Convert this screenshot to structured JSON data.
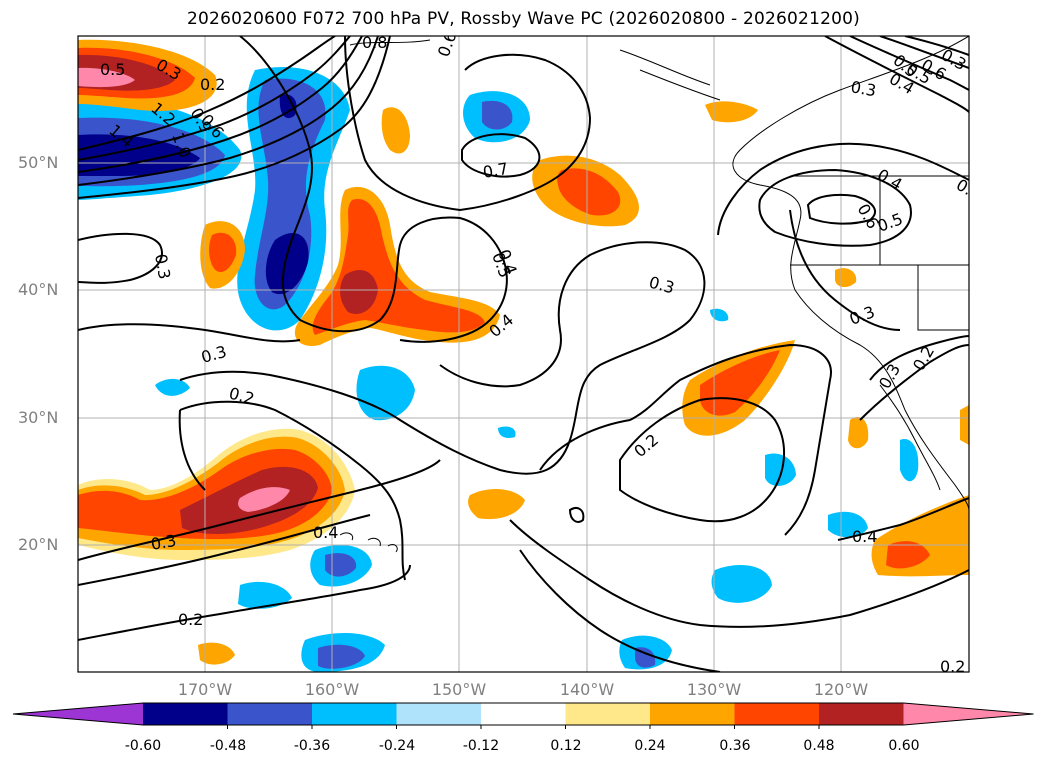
{
  "title": "2026020600 F072 700 hPa PV, Rossby Wave PC (2026020800 - 2026021200)",
  "map": {
    "projection": "lat-lon",
    "lon_range": [
      -180,
      -110
    ],
    "lat_range": [
      10,
      60
    ],
    "gridlines": true,
    "lat_ticks": [
      {
        "value": 50,
        "label": "50°N"
      },
      {
        "value": 40,
        "label": "40°N"
      },
      {
        "value": 30,
        "label": "30°N"
      },
      {
        "value": 20,
        "label": "20°N"
      }
    ],
    "lon_ticks": [
      {
        "value": -170,
        "label": "170°W"
      },
      {
        "value": -160,
        "label": "160°W"
      },
      {
        "value": -150,
        "label": "150°W"
      },
      {
        "value": -140,
        "label": "140°W"
      },
      {
        "value": -130,
        "label": "130°W"
      },
      {
        "value": -120,
        "label": "120°W"
      }
    ]
  },
  "shading": {
    "variable": "Rossby Wave PC",
    "levels": [
      -0.6,
      -0.48,
      -0.36,
      -0.24,
      -0.12,
      0.12,
      0.24,
      0.36,
      0.48,
      0.6
    ],
    "level_labels": [
      "-0.60",
      "-0.48",
      "-0.36",
      "-0.24",
      "-0.12",
      "0.12",
      "0.24",
      "0.36",
      "0.48",
      "0.60"
    ],
    "colors": [
      "#9d35d4",
      "#00008b",
      "#3a55cc",
      "#00bfff",
      "#aee3fb",
      "#ffffff",
      "#ffe88a",
      "#ffa500",
      "#ff4500",
      "#b22222",
      "#ff88aa"
    ],
    "extend": "both"
  },
  "contours": {
    "variable": "700 hPa PV",
    "labels": [
      "0.3",
      "0.5",
      "0.2",
      "0.8",
      "0.6",
      "1.4",
      "1.2",
      "1.0",
      "0.9",
      "0.6",
      "0.3",
      "0.7",
      "0.4",
      "0.3",
      "0.5",
      "0.4",
      "0.6",
      "0.5",
      "0.3",
      "0.3",
      "0.3",
      "0.2",
      "0.3",
      "0.4",
      "0.2",
      "0.3",
      "0.2",
      "0.4",
      "0.2",
      "0.4",
      "0.2",
      "0.5",
      "0.4",
      "0.3",
      "0.5",
      "0.4",
      "0.6"
    ]
  }
}
